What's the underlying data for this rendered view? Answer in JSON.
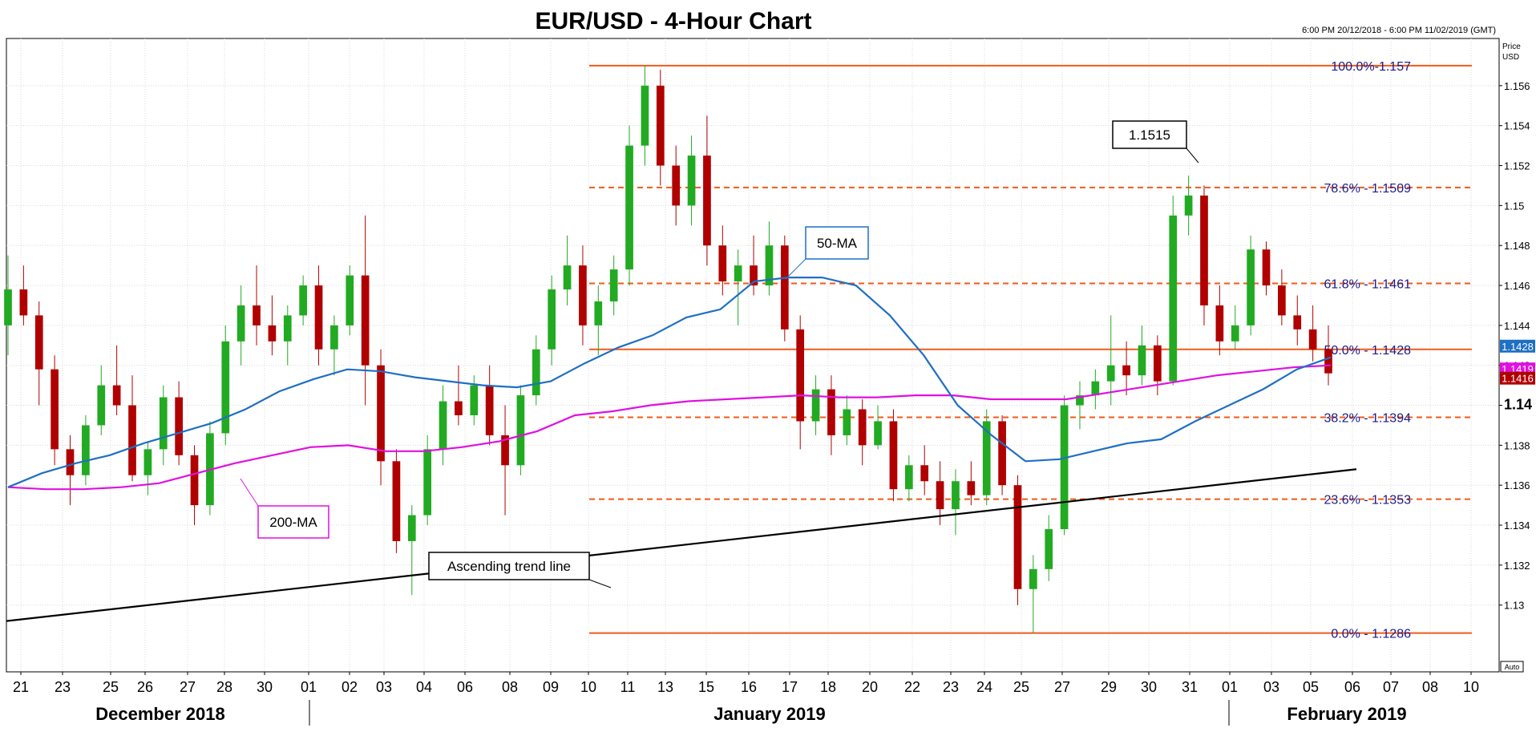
{
  "title": "EUR/USD - 4-Hour Chart",
  "date_range": "6:00 PM 20/12/2018 - 6:00 PM 11/02/2019 (GMT)",
  "price_label": [
    "Price",
    "USD"
  ],
  "auto_label": "Auto",
  "colors": {
    "bull": "#22aa22",
    "bear": "#b00000",
    "ma50": "#1f6fc4",
    "ma200": "#e010e0",
    "fib": "#f05a1a",
    "trend": "#000000",
    "fib_text": "#1a1a8c"
  },
  "chart_data": {
    "type": "candlestick",
    "title": "EUR/USD - 4-Hour Chart",
    "ylim": [
      1.1277,
      1.1578
    ],
    "y_ticks": [
      "1.13",
      "1.132",
      "1.134",
      "1.136",
      "1.138",
      "1.14",
      "1.142",
      "1.144",
      "1.146",
      "1.148",
      "1.15",
      "1.152",
      "1.154",
      "1.156"
    ],
    "x_ticks": [
      "21",
      "23",
      "25",
      "26",
      "27",
      "28",
      "30",
      "01",
      "02",
      "03",
      "04",
      "06",
      "08",
      "09",
      "10",
      "11",
      "13",
      "15",
      "16",
      "17",
      "18",
      "20",
      "22",
      "23",
      "24",
      "25",
      "27",
      "29",
      "30",
      "31",
      "01",
      "03",
      "05",
      "06",
      "07",
      "08",
      "10"
    ],
    "months": [
      "December 2018",
      "January 2019",
      "February 2019"
    ],
    "fib_levels": [
      {
        "label": "100.0%-1.157",
        "value": 1.157
      },
      {
        "label": "78.6% - 1.1509",
        "value": 1.1509
      },
      {
        "label": "61.8% - 1.1461",
        "value": 1.1461
      },
      {
        "label": "50.0% - 1.1428",
        "value": 1.1428
      },
      {
        "label": "38.2% - 1.1394",
        "value": 1.1394
      },
      {
        "label": "23.6% - 1.1353",
        "value": 1.1353
      },
      {
        "label": "0.0% - 1.1286",
        "value": 1.1286
      }
    ],
    "price_tags": [
      {
        "label": "1.1428",
        "value": 1.1428,
        "color": "#1f6fc4"
      },
      {
        "label": "1.1419",
        "value": 1.1419,
        "color": "#e010e0"
      },
      {
        "label": "1.1416",
        "value": 1.1416,
        "color": "#b00000"
      }
    ],
    "annotations": [
      {
        "label": "1.1515",
        "value": 1.1515
      },
      {
        "label": "50-MA"
      },
      {
        "label": "200-MA"
      },
      {
        "label": "Ascending trend line"
      }
    ],
    "trend_line": {
      "start": 1.1292,
      "end": 1.1368
    },
    "ma50": [
      1.1359,
      1.1366,
      1.1371,
      1.1375,
      1.1381,
      1.1386,
      1.1391,
      1.1398,
      1.1407,
      1.1413,
      1.1418,
      1.1417,
      1.1414,
      1.1412,
      1.141,
      1.1409,
      1.1412,
      1.1421,
      1.1429,
      1.1435,
      1.1444,
      1.1448,
      1.1462,
      1.1464,
      1.1464,
      1.146,
      1.1445,
      1.1425,
      1.14,
      1.1385,
      1.1372,
      1.1373,
      1.1377,
      1.1381,
      1.1383,
      1.1392,
      1.14,
      1.1408,
      1.1418,
      1.1424
    ],
    "ma200": [
      1.1359,
      1.1358,
      1.1358,
      1.1359,
      1.1361,
      1.1366,
      1.1371,
      1.1375,
      1.1379,
      1.138,
      1.1377,
      1.1377,
      1.1379,
      1.1382,
      1.1387,
      1.1395,
      1.1397,
      1.14,
      1.1402,
      1.1403,
      1.1404,
      1.1405,
      1.1404,
      1.1404,
      1.1405,
      1.1405,
      1.1403,
      1.1403,
      1.1403,
      1.1406,
      1.1409,
      1.1412,
      1.1415,
      1.1417,
      1.1419,
      1.142
    ],
    "candles": [
      {
        "o": 1.144,
        "h": 1.1475,
        "l": 1.1425,
        "c": 1.1458
      },
      {
        "o": 1.1458,
        "h": 1.147,
        "l": 1.144,
        "c": 1.1445
      },
      {
        "o": 1.1445,
        "h": 1.1452,
        "l": 1.14,
        "c": 1.1418
      },
      {
        "o": 1.1418,
        "h": 1.1425,
        "l": 1.137,
        "c": 1.1378
      },
      {
        "o": 1.1378,
        "h": 1.1385,
        "l": 1.135,
        "c": 1.1365
      },
      {
        "o": 1.1365,
        "h": 1.1395,
        "l": 1.136,
        "c": 1.139
      },
      {
        "o": 1.139,
        "h": 1.142,
        "l": 1.1385,
        "c": 1.141
      },
      {
        "o": 1.141,
        "h": 1.143,
        "l": 1.1395,
        "c": 1.14
      },
      {
        "o": 1.14,
        "h": 1.1415,
        "l": 1.1362,
        "c": 1.1365
      },
      {
        "o": 1.1365,
        "h": 1.1382,
        "l": 1.1355,
        "c": 1.1378
      },
      {
        "o": 1.1378,
        "h": 1.141,
        "l": 1.137,
        "c": 1.1404
      },
      {
        "o": 1.1404,
        "h": 1.1412,
        "l": 1.137,
        "c": 1.1375
      },
      {
        "o": 1.1375,
        "h": 1.138,
        "l": 1.134,
        "c": 1.135
      },
      {
        "o": 1.135,
        "h": 1.1392,
        "l": 1.1345,
        "c": 1.1386
      },
      {
        "o": 1.1386,
        "h": 1.144,
        "l": 1.138,
        "c": 1.1432
      },
      {
        "o": 1.1432,
        "h": 1.146,
        "l": 1.142,
        "c": 1.145
      },
      {
        "o": 1.145,
        "h": 1.147,
        "l": 1.143,
        "c": 1.144
      },
      {
        "o": 1.144,
        "h": 1.1455,
        "l": 1.1425,
        "c": 1.1432
      },
      {
        "o": 1.1432,
        "h": 1.145,
        "l": 1.142,
        "c": 1.1445
      },
      {
        "o": 1.1445,
        "h": 1.1465,
        "l": 1.144,
        "c": 1.146
      },
      {
        "o": 1.146,
        "h": 1.147,
        "l": 1.142,
        "c": 1.1428
      },
      {
        "o": 1.1428,
        "h": 1.1445,
        "l": 1.1415,
        "c": 1.144
      },
      {
        "o": 1.144,
        "h": 1.147,
        "l": 1.1435,
        "c": 1.1465
      },
      {
        "o": 1.1465,
        "h": 1.1495,
        "l": 1.14,
        "c": 1.142
      },
      {
        "o": 1.142,
        "h": 1.1428,
        "l": 1.136,
        "c": 1.1372
      },
      {
        "o": 1.1372,
        "h": 1.1378,
        "l": 1.1326,
        "c": 1.1332
      },
      {
        "o": 1.1332,
        "h": 1.135,
        "l": 1.1305,
        "c": 1.1345
      },
      {
        "o": 1.1345,
        "h": 1.1385,
        "l": 1.134,
        "c": 1.1378
      },
      {
        "o": 1.1378,
        "h": 1.141,
        "l": 1.137,
        "c": 1.1402
      },
      {
        "o": 1.1402,
        "h": 1.142,
        "l": 1.139,
        "c": 1.1395
      },
      {
        "o": 1.1395,
        "h": 1.1415,
        "l": 1.139,
        "c": 1.141
      },
      {
        "o": 1.141,
        "h": 1.142,
        "l": 1.138,
        "c": 1.1385
      },
      {
        "o": 1.1385,
        "h": 1.14,
        "l": 1.1345,
        "c": 1.137
      },
      {
        "o": 1.137,
        "h": 1.141,
        "l": 1.1365,
        "c": 1.1405
      },
      {
        "o": 1.1405,
        "h": 1.1435,
        "l": 1.14,
        "c": 1.1428
      },
      {
        "o": 1.1428,
        "h": 1.1465,
        "l": 1.142,
        "c": 1.1458
      },
      {
        "o": 1.1458,
        "h": 1.1485,
        "l": 1.145,
        "c": 1.147
      },
      {
        "o": 1.147,
        "h": 1.148,
        "l": 1.143,
        "c": 1.144
      },
      {
        "o": 1.144,
        "h": 1.146,
        "l": 1.1425,
        "c": 1.1452
      },
      {
        "o": 1.1452,
        "h": 1.1475,
        "l": 1.1445,
        "c": 1.1468
      },
      {
        "o": 1.1468,
        "h": 1.154,
        "l": 1.146,
        "c": 1.153
      },
      {
        "o": 1.153,
        "h": 1.157,
        "l": 1.152,
        "c": 1.156
      },
      {
        "o": 1.156,
        "h": 1.1568,
        "l": 1.151,
        "c": 1.152
      },
      {
        "o": 1.152,
        "h": 1.153,
        "l": 1.149,
        "c": 1.15
      },
      {
        "o": 1.15,
        "h": 1.1535,
        "l": 1.149,
        "c": 1.1525
      },
      {
        "o": 1.1525,
        "h": 1.1545,
        "l": 1.147,
        "c": 1.148
      },
      {
        "o": 1.148,
        "h": 1.149,
        "l": 1.1455,
        "c": 1.1462
      },
      {
        "o": 1.1462,
        "h": 1.1478,
        "l": 1.144,
        "c": 1.147
      },
      {
        "o": 1.147,
        "h": 1.1485,
        "l": 1.1455,
        "c": 1.146
      },
      {
        "o": 1.146,
        "h": 1.1492,
        "l": 1.1455,
        "c": 1.148
      },
      {
        "o": 1.148,
        "h": 1.1485,
        "l": 1.1432,
        "c": 1.1438
      },
      {
        "o": 1.1438,
        "h": 1.1445,
        "l": 1.1378,
        "c": 1.1392
      },
      {
        "o": 1.1392,
        "h": 1.1415,
        "l": 1.1385,
        "c": 1.1408
      },
      {
        "o": 1.1408,
        "h": 1.1415,
        "l": 1.1375,
        "c": 1.1385
      },
      {
        "o": 1.1385,
        "h": 1.1405,
        "l": 1.138,
        "c": 1.1398
      },
      {
        "o": 1.1398,
        "h": 1.1403,
        "l": 1.137,
        "c": 1.138
      },
      {
        "o": 1.138,
        "h": 1.14,
        "l": 1.1378,
        "c": 1.1392
      },
      {
        "o": 1.1392,
        "h": 1.1398,
        "l": 1.1352,
        "c": 1.1358
      },
      {
        "o": 1.1358,
        "h": 1.1375,
        "l": 1.1352,
        "c": 1.137
      },
      {
        "o": 1.137,
        "h": 1.138,
        "l": 1.1355,
        "c": 1.1362
      },
      {
        "o": 1.1362,
        "h": 1.1372,
        "l": 1.134,
        "c": 1.1348
      },
      {
        "o": 1.1348,
        "h": 1.1368,
        "l": 1.1335,
        "c": 1.1362
      },
      {
        "o": 1.1362,
        "h": 1.1372,
        "l": 1.135,
        "c": 1.1355
      },
      {
        "o": 1.1355,
        "h": 1.1398,
        "l": 1.135,
        "c": 1.1392
      },
      {
        "o": 1.1392,
        "h": 1.1395,
        "l": 1.1355,
        "c": 1.136
      },
      {
        "o": 1.136,
        "h": 1.1365,
        "l": 1.13,
        "c": 1.1308
      },
      {
        "o": 1.1308,
        "h": 1.1325,
        "l": 1.1286,
        "c": 1.1318
      },
      {
        "o": 1.1318,
        "h": 1.1345,
        "l": 1.1312,
        "c": 1.1338
      },
      {
        "o": 1.1338,
        "h": 1.1405,
        "l": 1.1335,
        "c": 1.14
      },
      {
        "o": 1.14,
        "h": 1.1412,
        "l": 1.1388,
        "c": 1.1405
      },
      {
        "o": 1.1405,
        "h": 1.1418,
        "l": 1.1398,
        "c": 1.1412
      },
      {
        "o": 1.1412,
        "h": 1.1445,
        "l": 1.14,
        "c": 1.142
      },
      {
        "o": 1.142,
        "h": 1.1432,
        "l": 1.1405,
        "c": 1.1415
      },
      {
        "o": 1.1415,
        "h": 1.144,
        "l": 1.141,
        "c": 1.143
      },
      {
        "o": 1.143,
        "h": 1.1435,
        "l": 1.1405,
        "c": 1.1412
      },
      {
        "o": 1.1412,
        "h": 1.1505,
        "l": 1.141,
        "c": 1.1495
      },
      {
        "o": 1.1495,
        "h": 1.1515,
        "l": 1.1485,
        "c": 1.1505
      },
      {
        "o": 1.1505,
        "h": 1.151,
        "l": 1.144,
        "c": 1.145
      },
      {
        "o": 1.145,
        "h": 1.146,
        "l": 1.1425,
        "c": 1.1432
      },
      {
        "o": 1.1432,
        "h": 1.145,
        "l": 1.1428,
        "c": 1.144
      },
      {
        "o": 1.144,
        "h": 1.1485,
        "l": 1.1435,
        "c": 1.1478
      },
      {
        "o": 1.1478,
        "h": 1.1482,
        "l": 1.1455,
        "c": 1.146
      },
      {
        "o": 1.146,
        "h": 1.1468,
        "l": 1.144,
        "c": 1.1445
      },
      {
        "o": 1.1445,
        "h": 1.1455,
        "l": 1.143,
        "c": 1.1438
      },
      {
        "o": 1.1438,
        "h": 1.145,
        "l": 1.1422,
        "c": 1.1428
      },
      {
        "o": 1.1428,
        "h": 1.144,
        "l": 1.141,
        "c": 1.1416
      }
    ]
  }
}
